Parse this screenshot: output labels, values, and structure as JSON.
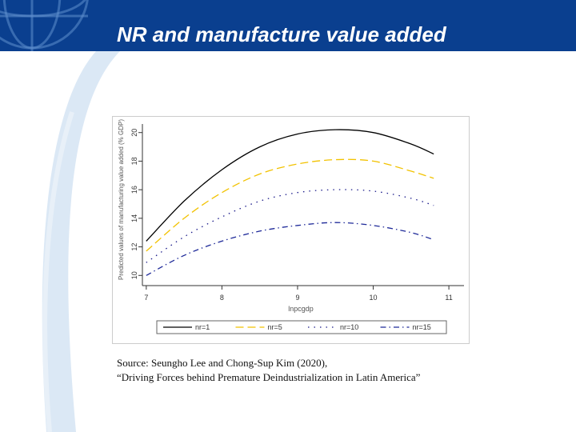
{
  "slide": {
    "title": "NR and manufacture value added",
    "source_line1": "Source: Seungho Lee and Chong-Sup Kim (2020),",
    "source_line2": "“Driving Forces behind Premature Deindustrialization in Latin America”"
  },
  "colors": {
    "banner": "#0a3f8f",
    "accent_light": "#9fc3e8"
  },
  "chart_data": {
    "type": "line",
    "xlabel": "lnpcgdp",
    "ylabel": "Predicted values of manufacturing value added (% GDP)",
    "xlim": [
      6.97,
      11.2
    ],
    "ylim": [
      9.4,
      20.6
    ],
    "xticks": [
      "7",
      "8",
      "9",
      "10",
      "11"
    ],
    "yticks": [
      "10",
      "12",
      "14",
      "16",
      "18",
      "20"
    ],
    "x": [
      7.0,
      7.5,
      8.0,
      8.5,
      9.0,
      9.5,
      10.0,
      10.5,
      10.8
    ],
    "series": [
      {
        "name": "nr=1",
        "color": "#000000",
        "dash": "none",
        "values": [
          12.4,
          15.2,
          17.4,
          19.0,
          19.9,
          20.2,
          20.0,
          19.2,
          18.5
        ]
      },
      {
        "name": "nr=5",
        "color": "#f2c200",
        "dash": "10,5",
        "values": [
          11.7,
          14.0,
          15.8,
          17.1,
          17.8,
          18.1,
          18.0,
          17.3,
          16.8
        ]
      },
      {
        "name": "nr=10",
        "color": "#1a1a8a",
        "dash": "1.5,6",
        "values": [
          10.9,
          12.7,
          14.1,
          15.2,
          15.8,
          16.0,
          15.9,
          15.4,
          14.9
        ]
      },
      {
        "name": "nr=15",
        "color": "#1f2a99",
        "dash": "7,4,1.5,4",
        "values": [
          10.0,
          11.4,
          12.4,
          13.1,
          13.5,
          13.7,
          13.5,
          13.0,
          12.5
        ]
      }
    ],
    "legend_position": "bottom",
    "grid": false
  }
}
